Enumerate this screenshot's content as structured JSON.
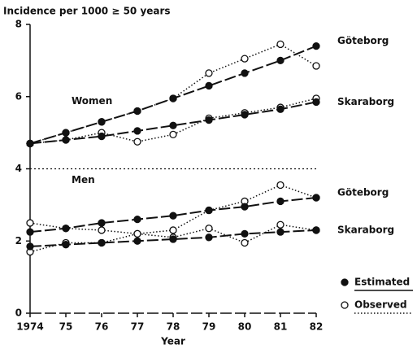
{
  "chart_data": {
    "type": "line",
    "title": "Incidence per 1000 ≥ 50 years",
    "xlabel": "Year",
    "x": [
      1974,
      1975,
      1976,
      1977,
      1978,
      1979,
      1980,
      1981,
      1982
    ],
    "xlim": [
      1974,
      1982
    ],
    "xticks": [
      {
        "value": 1974,
        "label": "1974"
      },
      {
        "value": 1975,
        "label": "75"
      },
      {
        "value": 1976,
        "label": "76"
      },
      {
        "value": 1977,
        "label": "77"
      },
      {
        "value": 1978,
        "label": "78"
      },
      {
        "value": 1979,
        "label": "79"
      },
      {
        "value": 1980,
        "label": "80"
      },
      {
        "value": 1981,
        "label": "81"
      },
      {
        "value": 1982,
        "label": "82"
      }
    ],
    "ylim": [
      0,
      8
    ],
    "yticks": [
      0,
      2,
      4,
      6,
      8
    ],
    "hline": 4,
    "color": "#111111",
    "legend": [
      {
        "label": "Estimated",
        "marker": "filled"
      },
      {
        "label": "Observed",
        "marker": "open"
      }
    ],
    "groups": [
      {
        "name": "Women",
        "series": [
          {
            "name": "Göteborg",
            "estimated": [
              4.7,
              5.0,
              5.3,
              5.6,
              5.95,
              6.3,
              6.65,
              7.0,
              7.4
            ],
            "observed": [
              4.7,
              5.0,
              5.3,
              5.6,
              5.95,
              6.65,
              7.05,
              7.45,
              6.85
            ]
          },
          {
            "name": "Skaraborg",
            "estimated": [
              4.7,
              4.8,
              4.9,
              5.05,
              5.2,
              5.35,
              5.5,
              5.65,
              5.85
            ],
            "observed": [
              4.7,
              4.8,
              5.0,
              4.75,
              4.95,
              5.4,
              5.55,
              5.7,
              5.95
            ]
          }
        ]
      },
      {
        "name": "Men",
        "series": [
          {
            "name": "Göteborg",
            "estimated": [
              2.25,
              2.35,
              2.5,
              2.6,
              2.7,
              2.85,
              2.95,
              3.1,
              3.2
            ],
            "observed": [
              2.5,
              2.35,
              2.3,
              2.2,
              2.3,
              2.85,
              3.1,
              3.55,
              3.2
            ]
          },
          {
            "name": "Skaraborg",
            "estimated": [
              1.85,
              1.9,
              1.95,
              2.0,
              2.05,
              2.1,
              2.2,
              2.25,
              2.3
            ],
            "observed": [
              1.7,
              1.95,
              1.95,
              2.2,
              2.1,
              2.35,
              1.95,
              2.45,
              2.3
            ]
          }
        ]
      }
    ]
  }
}
